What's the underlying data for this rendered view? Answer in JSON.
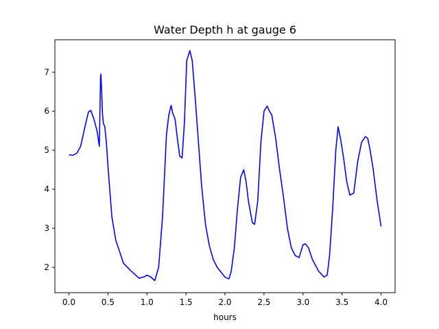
{
  "chart_data": {
    "type": "line",
    "title": "Water Depth h at gauge 6",
    "xlabel": "hours",
    "ylabel": "",
    "xlim": [
      -0.18,
      4.18
    ],
    "ylim": [
      1.35,
      7.83
    ],
    "xticks": [
      0.0,
      0.5,
      1.0,
      1.5,
      2.0,
      2.5,
      3.0,
      3.5,
      4.0
    ],
    "xtick_labels": [
      "0.0",
      "0.5",
      "1.0",
      "1.5",
      "2.0",
      "2.5",
      "3.0",
      "3.5",
      "4.0"
    ],
    "yticks": [
      2,
      3,
      4,
      5,
      6,
      7
    ],
    "ytick_labels": [
      "2",
      "3",
      "4",
      "5",
      "6",
      "7"
    ],
    "grid": false,
    "series": [
      {
        "color": "#0000ff",
        "x": [
          0.0,
          0.05,
          0.1,
          0.15,
          0.2,
          0.25,
          0.28,
          0.32,
          0.36,
          0.39,
          0.405,
          0.41,
          0.42,
          0.43,
          0.44,
          0.46,
          0.48,
          0.5,
          0.55,
          0.6,
          0.7,
          0.8,
          0.9,
          0.97,
          1.0,
          1.05,
          1.1,
          1.15,
          1.2,
          1.25,
          1.28,
          1.31,
          1.33,
          1.36,
          1.39,
          1.42,
          1.45,
          1.48,
          1.51,
          1.55,
          1.58,
          1.62,
          1.66,
          1.7,
          1.75,
          1.8,
          1.85,
          1.9,
          2.0,
          2.05,
          2.08,
          2.12,
          2.16,
          2.2,
          2.24,
          2.27,
          2.3,
          2.35,
          2.38,
          2.42,
          2.46,
          2.5,
          2.54,
          2.57,
          2.6,
          2.65,
          2.7,
          2.75,
          2.8,
          2.85,
          2.9,
          2.95,
          3.0,
          3.03,
          3.07,
          3.12,
          3.2,
          3.27,
          3.31,
          3.34,
          3.38,
          3.42,
          3.45,
          3.48,
          3.52,
          3.56,
          3.6,
          3.65,
          3.7,
          3.75,
          3.8,
          3.83,
          3.86,
          3.9,
          3.95,
          4.0
        ],
        "y": [
          4.88,
          4.87,
          4.92,
          5.1,
          5.55,
          5.98,
          6.02,
          5.8,
          5.5,
          5.1,
          6.85,
          6.95,
          6.5,
          5.95,
          5.7,
          5.6,
          5.2,
          4.6,
          3.3,
          2.7,
          2.1,
          1.9,
          1.72,
          1.76,
          1.8,
          1.75,
          1.66,
          2.0,
          3.3,
          5.4,
          5.9,
          6.15,
          5.95,
          5.8,
          5.3,
          4.85,
          4.8,
          5.7,
          7.3,
          7.55,
          7.3,
          6.3,
          5.2,
          4.1,
          3.1,
          2.55,
          2.2,
          2.0,
          1.75,
          1.7,
          1.9,
          2.5,
          3.5,
          4.3,
          4.5,
          4.2,
          3.7,
          3.15,
          3.1,
          3.7,
          5.2,
          6.0,
          6.13,
          6.0,
          5.9,
          5.3,
          4.5,
          3.8,
          3.0,
          2.5,
          2.3,
          2.25,
          2.58,
          2.6,
          2.5,
          2.2,
          1.9,
          1.75,
          1.8,
          2.3,
          3.5,
          5.0,
          5.6,
          5.3,
          4.8,
          4.2,
          3.85,
          3.9,
          4.7,
          5.2,
          5.35,
          5.3,
          5.0,
          4.5,
          3.7,
          3.05
        ]
      }
    ]
  }
}
